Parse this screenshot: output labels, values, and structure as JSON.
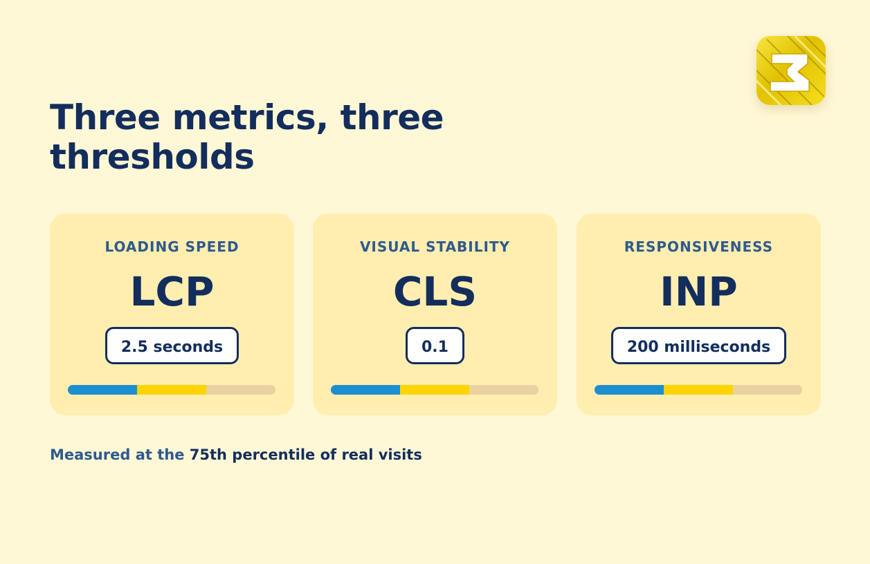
{
  "slide": {
    "title": "Three metrics, three thresholds",
    "footnote": {
      "lead": "Measured at the",
      "emphasis": "75th percentile of real visits"
    }
  },
  "logo": {
    "icon": "number-three-badge-icon",
    "text": "3",
    "colors": [
      "#f5e11a",
      "#d4b400",
      "#8a6b00",
      "#ffffff"
    ]
  },
  "metrics": [
    {
      "category": "LOADING SPEED",
      "abbr": "LCP",
      "threshold": "2.5 seconds",
      "bands": [
        {
          "name": "good",
          "fraction": 0.333,
          "color": "#1d8fd0"
        },
        {
          "name": "needs-improvement",
          "fraction": 0.333,
          "color": "#ffd400"
        },
        {
          "name": "poor",
          "fraction": 0.334,
          "color": "#ead2a0"
        }
      ]
    },
    {
      "category": "VISUAL STABILITY",
      "abbr": "CLS",
      "threshold": "0.1",
      "bands": [
        {
          "name": "good",
          "fraction": 0.333,
          "color": "#1d8fd0"
        },
        {
          "name": "needs-improvement",
          "fraction": 0.333,
          "color": "#ffd400"
        },
        {
          "name": "poor",
          "fraction": 0.334,
          "color": "#ead2a0"
        }
      ]
    },
    {
      "category": "RESPONSIVENESS",
      "abbr": "INP",
      "threshold": "200 milliseconds",
      "bands": [
        {
          "name": "good",
          "fraction": 0.333,
          "color": "#1d8fd0"
        },
        {
          "name": "needs-improvement",
          "fraction": 0.333,
          "color": "#ffd400"
        },
        {
          "name": "poor",
          "fraction": 0.334,
          "color": "#ead2a0"
        }
      ]
    }
  ],
  "colors": {
    "background": "#fff8d6",
    "card": "#ffeeb0",
    "navy": "#132d5c",
    "muted_blue": "#2f5a8e",
    "good": "#1d8fd0",
    "needs_improvement": "#ffd400",
    "poor": "#ead2a0"
  }
}
